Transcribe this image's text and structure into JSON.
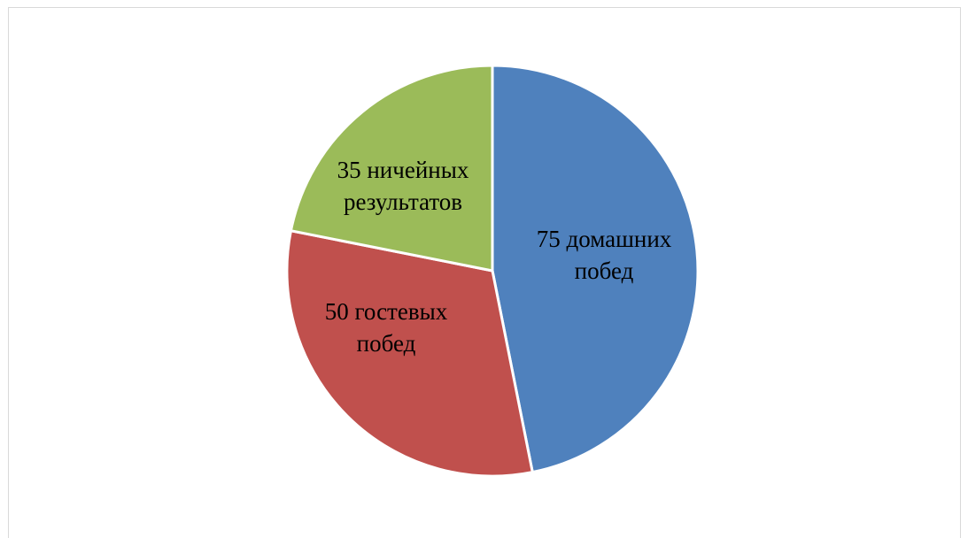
{
  "chart_data": {
    "type": "pie",
    "title": "",
    "start_angle_deg": 0,
    "direction": "clockwise",
    "legend": "none",
    "slices": [
      {
        "value": 75,
        "label": "75 домашних побед",
        "label_lines": [
          "75 домашних",
          "побед"
        ],
        "color": "#4f81bd"
      },
      {
        "value": 50,
        "label": "50 гостевых побед",
        "label_lines": [
          "50 гостевых",
          "побед"
        ],
        "color": "#c0504d"
      },
      {
        "value": 35,
        "label": "35 ничейных результатов",
        "label_lines": [
          "35 ничейных",
          "результатов"
        ],
        "color": "#9bbb59"
      }
    ]
  }
}
